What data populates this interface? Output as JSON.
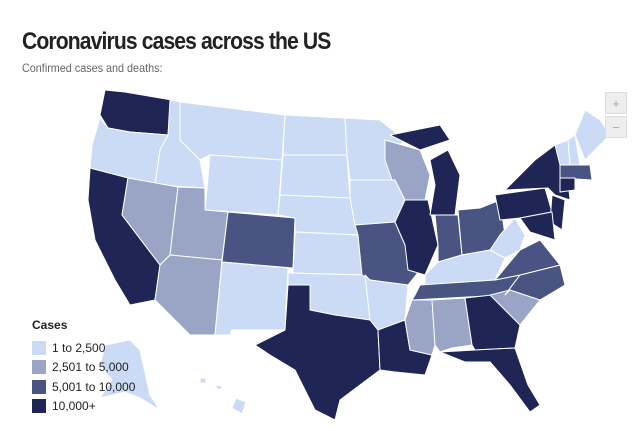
{
  "header": {
    "title": "Coronavirus cases across the US",
    "subtitle": "Confirmed cases and deaths:"
  },
  "legend": {
    "title": "Cases",
    "items": [
      {
        "label": "1 to 2,500",
        "color": "#cbdbf6"
      },
      {
        "label": "2,501 to 5,000",
        "color": "#9aa5c5"
      },
      {
        "label": "5,001 to 10,000",
        "color": "#4a5482"
      },
      {
        "label": "10,000+",
        "color": "#1f2656"
      }
    ]
  },
  "zoom_controls": [
    "+",
    "−"
  ]
}
